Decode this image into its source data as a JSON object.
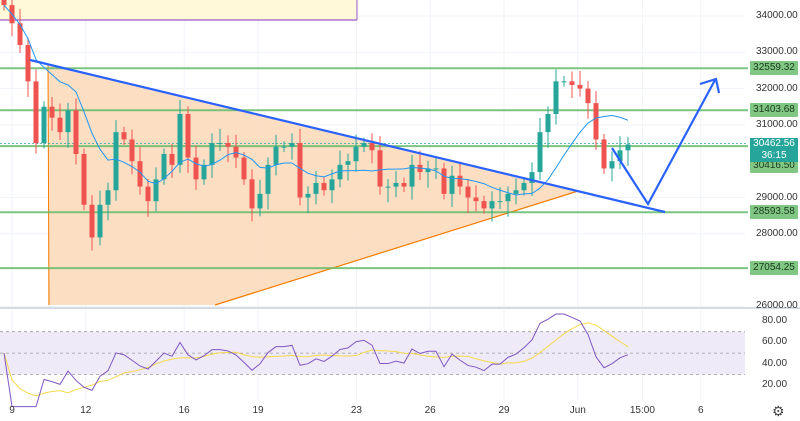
{
  "chart_data": [
    {
      "type": "candlestick",
      "price_axis": {
        "min": 26000,
        "max": 34500,
        "ticks": [
          "34000.00",
          "33000.00",
          "32000.00",
          "31000.00",
          "29000.00",
          "28000.00",
          "26000.00"
        ],
        "tick_values": [
          34000,
          33000,
          32000,
          31000,
          29000,
          28000,
          26000
        ]
      },
      "x_axis": {
        "ticks": [
          {
            "label": "9",
            "day": 9
          },
          {
            "label": "12",
            "day": 12
          },
          {
            "label": "16",
            "day": 16
          },
          {
            "label": "19",
            "day": 19
          },
          {
            "label": "23",
            "day": 23
          },
          {
            "label": "26",
            "day": 26
          },
          {
            "label": "29",
            "day": 29
          },
          {
            "label": "Jun",
            "day": 32
          },
          {
            "label": "15:00",
            "day": 34.625
          },
          {
            "label": "6",
            "day": 37
          }
        ]
      },
      "closes": [
        34300,
        33800,
        33200,
        32200,
        30500,
        31500,
        31200,
        30800,
        31400,
        30200,
        28800,
        27900,
        28800,
        29200,
        30800,
        30600,
        30000,
        29300,
        28900,
        29500,
        30200,
        29900,
        31300,
        30100,
        29500,
        29900,
        30500,
        30500,
        30400,
        30100,
        29500,
        28700,
        29100,
        29900,
        30400,
        30400,
        30500,
        29000,
        29100,
        29400,
        29200,
        29500,
        29900,
        30000,
        30400,
        30500,
        30300,
        29300,
        29300,
        29400,
        29300,
        29900,
        29700,
        29800,
        29800,
        29100,
        29600,
        29300,
        29000,
        28900,
        28700,
        28900,
        28900,
        29100,
        29200,
        29400,
        29700,
        30800,
        31300,
        32200,
        32200,
        32100,
        32000,
        31600,
        30600,
        29800,
        30000,
        30300,
        30460
      ],
      "levels": [
        {
          "label": "32559.32",
          "value": 32559.32
        },
        {
          "label": "31403.68",
          "value": 31403.68
        },
        {
          "label": "30416.50",
          "value": 30416.5
        },
        {
          "label": "28593.58",
          "value": 28593.58
        },
        {
          "label": "27054.25",
          "value": 27054.25
        }
      ],
      "current_price": {
        "label": "30462.56",
        "countdown": "36:15",
        "value": 30462.56
      },
      "colors": {
        "up": "#26a69a",
        "down": "#ef5350",
        "level": "#66bb6a",
        "trendline": "#2962ff",
        "ma": "#2196f3",
        "triangle_fill": "#fbd9b8",
        "triangle_edge": "#f57c00",
        "top_box": "#fff9d9"
      },
      "annotation": "descending trendline with symmetrical triangle; projected arrow: dip to trendline then breakout up"
    },
    {
      "type": "line",
      "indicator": "RSI",
      "y_axis": {
        "ticks": [
          "80.00",
          "60.00",
          "40.00",
          "20.00"
        ],
        "tick_values": [
          80,
          60,
          40,
          20
        ],
        "band": [
          30,
          70
        ],
        "mid": 50
      },
      "colors": {
        "rsi": "#7e57c2",
        "signal": "#f5d94a",
        "band_fill": "#efeaf8"
      }
    }
  ],
  "settings_icon": "gear-icon"
}
